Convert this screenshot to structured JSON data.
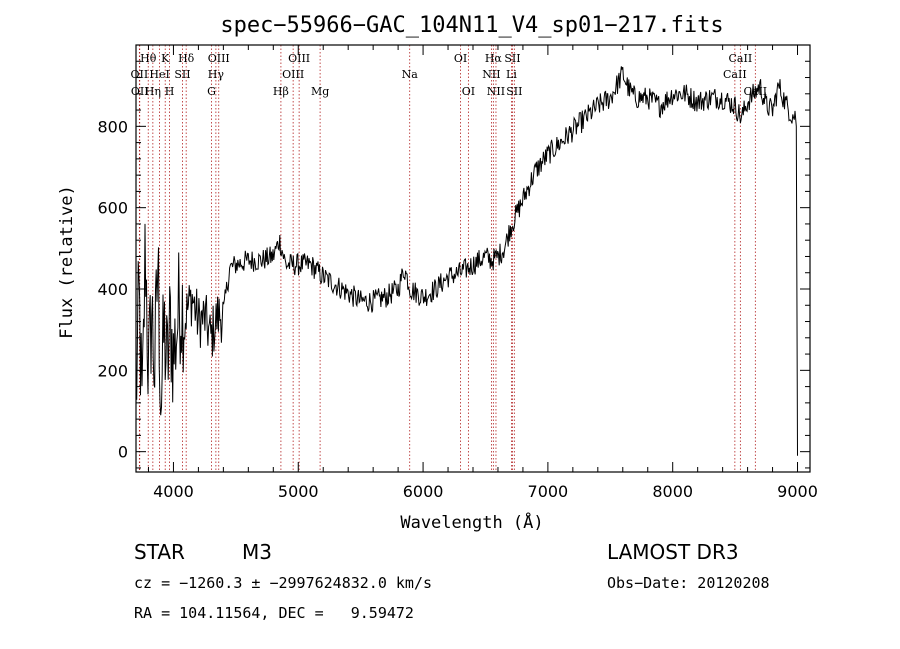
{
  "chart_data": {
    "type": "line",
    "title": "spec−55966−GAC_104N11_V4_sp01−217.fits",
    "xlabel": "Wavelength (Å)",
    "ylabel": "Flux (relative)",
    "xlim": [
      3700,
      9100
    ],
    "ylim": [
      -50,
      1000
    ],
    "x_ticks": [
      4000,
      5000,
      6000,
      7000,
      8000,
      9000
    ],
    "y_ticks": [
      0,
      200,
      400,
      600,
      800
    ],
    "series": [
      {
        "name": "flux",
        "x": [
          3700,
          3725,
          3750,
          3775,
          3800,
          3825,
          3850,
          3875,
          3900,
          3925,
          3950,
          3975,
          4000,
          4050,
          4100,
          4150,
          4200,
          4250,
          4300,
          4350,
          4400,
          4450,
          4500,
          4600,
          4700,
          4800,
          4850,
          4900,
          5000,
          5100,
          5200,
          5300,
          5400,
          5500,
          5600,
          5700,
          5800,
          5850,
          5900,
          6000,
          6100,
          6200,
          6300,
          6400,
          6500,
          6550,
          6600,
          6650,
          6700,
          6800,
          6900,
          7000,
          7100,
          7200,
          7300,
          7400,
          7500,
          7550,
          7600,
          7650,
          7700,
          7800,
          7900,
          8000,
          8100,
          8200,
          8300,
          8400,
          8500,
          8550,
          8600,
          8650,
          8700,
          8750,
          8800,
          8850,
          8900,
          8950,
          9000
        ],
        "y": [
          130,
          380,
          70,
          520,
          180,
          350,
          200,
          470,
          120,
          300,
          200,
          320,
          230,
          370,
          340,
          380,
          320,
          330,
          280,
          330,
          340,
          450,
          460,
          470,
          470,
          480,
          520,
          460,
          460,
          460,
          430,
          410,
          390,
          370,
          370,
          380,
          400,
          450,
          400,
          380,
          400,
          430,
          440,
          460,
          480,
          470,
          480,
          500,
          550,
          620,
          690,
          730,
          760,
          790,
          820,
          850,
          870,
          900,
          930,
          890,
          870,
          870,
          850,
          880,
          880,
          860,
          870,
          870,
          850,
          820,
          860,
          880,
          900,
          850,
          840,
          900,
          860,
          830,
          820
        ]
      }
    ],
    "lines": [
      {
        "name": "Hθ",
        "x": 3798,
        "row": 1
      },
      {
        "name": "OII",
        "x": 3727,
        "row": 2
      },
      {
        "name": "OII",
        "x": 3730,
        "row": 3
      },
      {
        "name": "HeI",
        "x": 3889,
        "row": 2
      },
      {
        "name": "Hη",
        "x": 3835,
        "row": 3
      },
      {
        "name": "K",
        "x": 3934,
        "row": 1
      },
      {
        "name": "SII",
        "x": 4072,
        "row": 2
      },
      {
        "name": "H",
        "x": 3969,
        "row": 3
      },
      {
        "name": "Hδ",
        "x": 4102,
        "row": 1
      },
      {
        "name": "OIII",
        "x": 4363,
        "row": 1
      },
      {
        "name": "Hγ",
        "x": 4340,
        "row": 2
      },
      {
        "name": "G",
        "x": 4305,
        "row": 3
      },
      {
        "name": "OIII",
        "x": 5007,
        "row": 1
      },
      {
        "name": "OIII",
        "x": 4959,
        "row": 2
      },
      {
        "name": "Hβ",
        "x": 4861,
        "row": 3
      },
      {
        "name": "Mg",
        "x": 5175,
        "row": 3
      },
      {
        "name": "Na",
        "x": 5893,
        "row": 2
      },
      {
        "name": "OI",
        "x": 6300,
        "row": 1
      },
      {
        "name": "OI",
        "x": 6363,
        "row": 3
      },
      {
        "name": "Hα",
        "x": 6563,
        "row": 1
      },
      {
        "name": "NII",
        "x": 6548,
        "row": 2
      },
      {
        "name": "NII",
        "x": 6584,
        "row": 3
      },
      {
        "name": "SII",
        "x": 6716,
        "row": 1
      },
      {
        "name": "Li",
        "x": 6708,
        "row": 2
      },
      {
        "name": "SII",
        "x": 6731,
        "row": 3
      },
      {
        "name": "CaII",
        "x": 8542,
        "row": 1
      },
      {
        "name": "CaII",
        "x": 8498,
        "row": 2
      },
      {
        "name": "CaII",
        "x": 8662,
        "row": 3
      }
    ],
    "line_color": "#b22222",
    "grid": false
  },
  "info": {
    "class": "STAR",
    "subclass": "M3",
    "survey": "LAMOST DR3",
    "cz": "cz = −1260.3 ± −2997624832.0 km/s",
    "obs_date": "Obs−Date: 20120208",
    "radec": "RA = 104.11564, DEC =   9.59472"
  }
}
